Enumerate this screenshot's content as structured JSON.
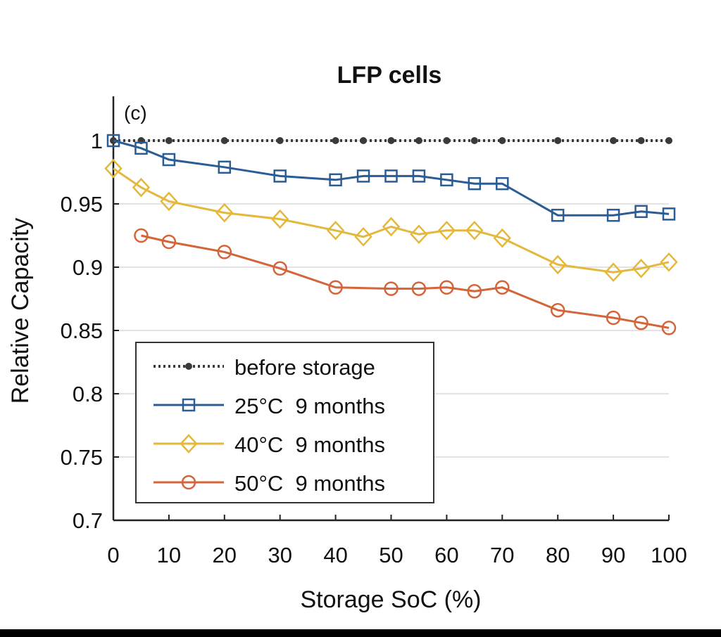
{
  "chart_data": {
    "type": "line",
    "title": "LFP cells",
    "panel_label": "(c)",
    "xlabel": "Storage SoC (%)",
    "ylabel": "Relative Capacity",
    "xlim": [
      0,
      100
    ],
    "ylim": [
      0.7,
      1.035
    ],
    "xticks": [
      0,
      10,
      20,
      30,
      40,
      50,
      60,
      70,
      80,
      90,
      100
    ],
    "xtick_labels": [
      "0",
      "10",
      "20",
      "30",
      "40",
      "50",
      "60",
      "70",
      "80",
      "90",
      "100"
    ],
    "yticks": [
      0.7,
      0.75,
      0.8,
      0.85,
      0.9,
      0.95,
      1
    ],
    "ytick_labels": [
      "0.7",
      "0.75",
      "0.8",
      "0.85",
      "0.9",
      "0.95",
      "1"
    ],
    "grid": "horizontal",
    "legend_position": "lower-left",
    "series": [
      {
        "name": "before storage",
        "color": "#3a3a3a",
        "line_style": "dotted",
        "marker": "dot",
        "x": [
          0,
          5,
          10,
          20,
          30,
          40,
          45,
          50,
          55,
          60,
          65,
          70,
          80,
          90,
          95,
          100
        ],
        "y": [
          1,
          1,
          1,
          1,
          1,
          1,
          1,
          1,
          1,
          1,
          1,
          1,
          1,
          1,
          1,
          1
        ]
      },
      {
        "name": "25°C  9 months",
        "color": "#2a5c96",
        "line_style": "solid",
        "marker": "square",
        "x": [
          0,
          5,
          10,
          20,
          30,
          40,
          45,
          50,
          55,
          60,
          65,
          70,
          80,
          90,
          95,
          100
        ],
        "y": [
          1.0,
          0.994,
          0.985,
          0.979,
          0.972,
          0.969,
          0.972,
          0.972,
          0.972,
          0.969,
          0.966,
          0.966,
          0.941,
          0.941,
          0.944,
          0.942
        ]
      },
      {
        "name": "40°C  9 months",
        "color": "#e3b83c",
        "line_style": "solid",
        "marker": "diamond",
        "x": [
          0,
          5,
          10,
          20,
          30,
          40,
          45,
          50,
          55,
          60,
          65,
          70,
          80,
          90,
          95,
          100
        ],
        "y": [
          0.978,
          0.963,
          0.952,
          0.943,
          0.938,
          0.929,
          0.924,
          0.932,
          0.926,
          0.929,
          0.929,
          0.923,
          0.902,
          0.896,
          0.899,
          0.904
        ]
      },
      {
        "name": "50°C  9 months",
        "color": "#d4643a",
        "line_style": "solid",
        "marker": "circle",
        "x": [
          5,
          10,
          20,
          30,
          40,
          50,
          55,
          60,
          65,
          70,
          80,
          90,
          95,
          100
        ],
        "y": [
          0.925,
          0.92,
          0.912,
          0.899,
          0.884,
          0.883,
          0.883,
          0.884,
          0.881,
          0.884,
          0.866,
          0.86,
          0.856,
          0.852
        ]
      }
    ]
  }
}
